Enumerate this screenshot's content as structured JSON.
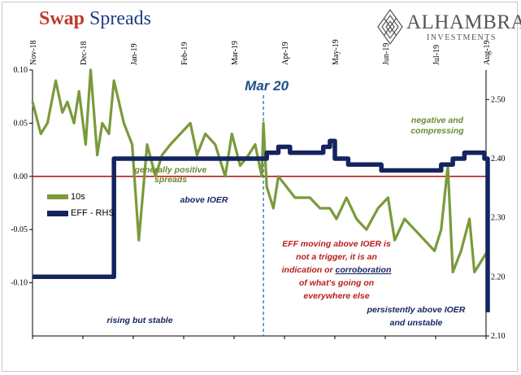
{
  "header": {
    "title_word1": "Swap",
    "title_word2": "Spreads"
  },
  "logo": {
    "name": "ALHAMBRA",
    "subtitle": "INVESTMENTS",
    "emblem": "diamond-lattice-icon"
  },
  "colors": {
    "series_10s": "#7a9a3b",
    "series_eff": "#14245f",
    "zero_line": "#b81d1d",
    "mar20_line": "#2a6fb0",
    "title_red": "#c0392b",
    "title_blue": "#1f3b82",
    "mar20_text": "#1f4e8c",
    "annotation_green": "#6b8a2f",
    "annotation_red": "#b81d1d",
    "annotation_navy": "#14245f"
  },
  "chart_data": {
    "type": "line",
    "x_ticks": [
      "Nov-18",
      "Dec-18",
      "Jan-19",
      "Feb-19",
      "Mar-19",
      "Apr-19",
      "May-19",
      "Jun-19",
      "Jul-19",
      "Aug-19"
    ],
    "left_axis": {
      "ticks": [
        "0.10",
        "0.05",
        "0.00",
        "-0.05",
        "-0.10"
      ],
      "ylim": [
        -0.15,
        0.1
      ]
    },
    "right_axis": {
      "ticks": [
        "2.50",
        "2.40",
        "2.30",
        "2.20",
        "2.10"
      ],
      "ylim": [
        2.1,
        2.55
      ]
    },
    "grid": false,
    "legend_position": "left",
    "series": [
      {
        "name": "10s",
        "axis": "left",
        "x": [
          "2018-11-01",
          "2018-11-06",
          "2018-11-10",
          "2018-11-15",
          "2018-11-19",
          "2018-11-22",
          "2018-11-26",
          "2018-11-29",
          "2018-12-03",
          "2018-12-06",
          "2018-12-10",
          "2018-12-13",
          "2018-12-17",
          "2018-12-20",
          "2018-12-26",
          "2018-12-31",
          "2019-01-04",
          "2019-01-09",
          "2019-01-14",
          "2019-01-18",
          "2019-01-23",
          "2019-01-29",
          "2019-02-04",
          "2019-02-08",
          "2019-02-13",
          "2019-02-19",
          "2019-02-25",
          "2019-03-01",
          "2019-03-06",
          "2019-03-11",
          "2019-03-15",
          "2019-03-19",
          "2019-03-20",
          "2019-03-22",
          "2019-03-26",
          "2019-03-29",
          "2019-04-03",
          "2019-04-08",
          "2019-04-12",
          "2019-04-17",
          "2019-04-23",
          "2019-04-29",
          "2019-05-03",
          "2019-05-09",
          "2019-05-15",
          "2019-05-21",
          "2019-05-28",
          "2019-06-03",
          "2019-06-07",
          "2019-06-13",
          "2019-06-19",
          "2019-06-25",
          "2019-07-01",
          "2019-07-05",
          "2019-07-09",
          "2019-07-12",
          "2019-07-17",
          "2019-07-22",
          "2019-07-25",
          "2019-07-29",
          "2019-08-02"
        ],
        "values": [
          0.07,
          0.04,
          0.05,
          0.09,
          0.06,
          0.07,
          0.05,
          0.08,
          0.03,
          0.1,
          0.02,
          0.05,
          0.04,
          0.09,
          0.05,
          0.03,
          -0.06,
          0.03,
          0.0,
          0.02,
          0.03,
          0.04,
          0.05,
          0.02,
          0.04,
          0.03,
          0.0,
          0.04,
          0.01,
          0.02,
          0.03,
          0.0,
          0.05,
          -0.01,
          -0.03,
          0.0,
          -0.01,
          -0.02,
          -0.02,
          -0.02,
          -0.03,
          -0.03,
          -0.04,
          -0.02,
          -0.04,
          -0.05,
          -0.03,
          -0.02,
          -0.06,
          -0.04,
          -0.05,
          -0.06,
          -0.07,
          -0.05,
          0.01,
          -0.09,
          -0.07,
          -0.04,
          -0.09,
          -0.08,
          -0.07
        ]
      },
      {
        "name": "EFF - RHS",
        "axis": "right",
        "x": [
          "2018-11-01",
          "2018-11-15",
          "2018-12-01",
          "2018-12-18",
          "2018-12-20",
          "2019-01-15",
          "2019-02-15",
          "2019-03-19",
          "2019-03-22",
          "2019-03-26",
          "2019-03-29",
          "2019-04-05",
          "2019-04-15",
          "2019-04-25",
          "2019-04-29",
          "2019-05-02",
          "2019-05-10",
          "2019-05-20",
          "2019-05-30",
          "2019-06-07",
          "2019-06-14",
          "2019-06-21",
          "2019-06-28",
          "2019-07-05",
          "2019-07-12",
          "2019-07-19",
          "2019-07-26",
          "2019-07-31",
          "2019-08-02"
        ],
        "values": [
          2.2,
          2.2,
          2.2,
          2.2,
          2.4,
          2.4,
          2.4,
          2.4,
          2.41,
          2.41,
          2.42,
          2.41,
          2.41,
          2.42,
          2.43,
          2.4,
          2.39,
          2.39,
          2.38,
          2.38,
          2.38,
          2.38,
          2.38,
          2.39,
          2.4,
          2.41,
          2.41,
          2.4,
          2.14
        ]
      }
    ],
    "annotations": {
      "mar20": "Mar 20",
      "generally_positive_line1": "generally positive",
      "generally_positive_line2": "spreads",
      "negative_line1": "negative and",
      "negative_line2": "compressing",
      "above_ioer": "above IOER",
      "eff_line1": "EFF moving above IOER is",
      "eff_line2": "not a trigger, it is an",
      "eff_line3_a": "indication or ",
      "eff_line3_b": "corroboration",
      "eff_line4": "of what's going on",
      "eff_line5": "everywhere else",
      "rising": "rising but stable",
      "persist_line1": "persistently above IOER",
      "persist_line2": "and unstable"
    }
  }
}
